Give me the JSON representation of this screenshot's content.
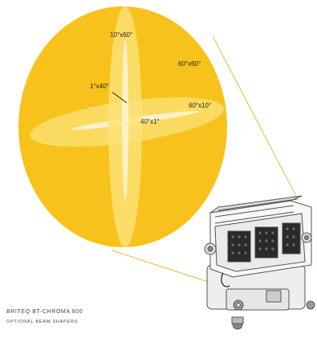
{
  "colors": {
    "background": "#ffffff",
    "beam_fill": "#f7c21b",
    "beam_light": "#fbe27a",
    "beam_core": "#fdf3c8",
    "outline": "#e0a800",
    "fixture_line": "#555555"
  },
  "beam_labels": {
    "vertical_wide": "10°x60°",
    "vertical_narrow": "1°x40°",
    "full_round": "60°x60°",
    "horizontal_wide": "60°x10°",
    "horizontal_narrow": "40°x1°"
  },
  "caption": {
    "title": "BRITEQ BT-CHROMA 800",
    "subtitle": "OPTIONAL BEAM SHAPERS"
  },
  "fixture": {
    "icon": "led-wash-fixture-icon"
  }
}
